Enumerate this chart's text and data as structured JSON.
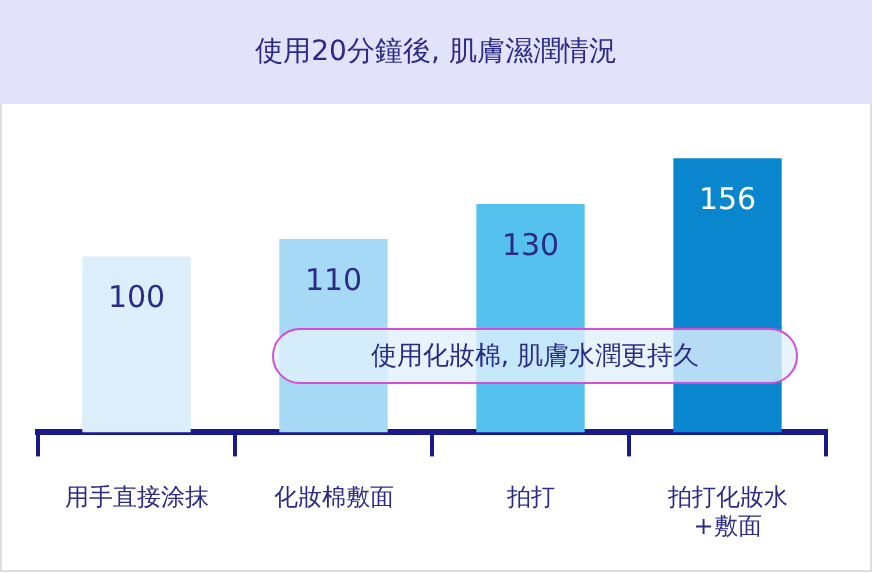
{
  "chart_data": {
    "type": "bar",
    "title": "使用20分鐘後, 肌膚濕潤情況",
    "categories": [
      "用手直接涂抹",
      "化妝棉敷面",
      "拍打",
      "拍打化妝水\n+敷面"
    ],
    "values": [
      100,
      110,
      130,
      156
    ],
    "colors": [
      "#dceef9",
      "#a6d9f5",
      "#55c1ef",
      "#0a86cf"
    ],
    "data_labels": true,
    "grid": false,
    "legend": false,
    "annotations": [
      "使用化妝棉, 肌膚水潤更持久"
    ]
  }
}
